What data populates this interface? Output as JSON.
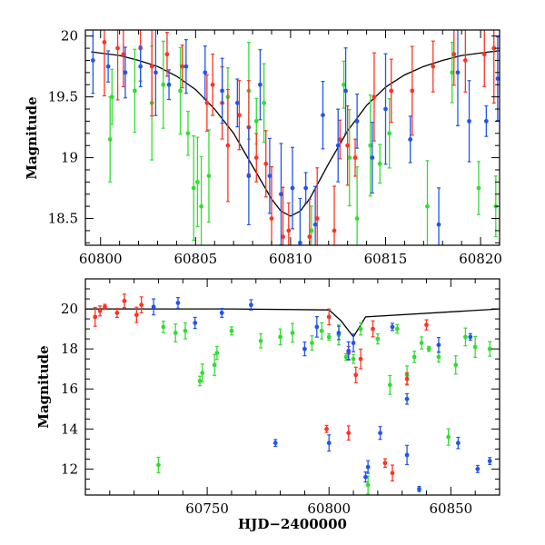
{
  "chart_data": [
    {
      "type": "scatter",
      "title": "",
      "xlabel": "",
      "ylabel": "Magnitude",
      "xlim": [
        60799.2,
        60821.0
      ],
      "ylim": [
        20.05,
        18.28
      ],
      "y_inverted": true,
      "x_ticks": [
        "60800",
        "60805",
        "60810",
        "60815",
        "60820"
      ],
      "x_tick_values": [
        60800,
        60805,
        60810,
        60815,
        60820
      ],
      "y_ticks": [
        "18.5",
        "19",
        "19.5",
        "20"
      ],
      "y_tick_values": [
        18.5,
        19.0,
        19.5,
        20.0
      ],
      "model_curve": {
        "color": "#000000",
        "x": [
          60799.5,
          60801,
          60802,
          60803,
          60804,
          60805,
          60806,
          60807,
          60808,
          60809,
          60809.5,
          60810,
          60810.5,
          60811,
          60812,
          60813,
          60814,
          60815,
          60816,
          60817,
          60818,
          60819,
          60820,
          60821
        ],
        "y": [
          19.87,
          19.84,
          19.8,
          19.75,
          19.67,
          19.56,
          19.4,
          19.2,
          18.93,
          18.66,
          18.56,
          18.52,
          18.56,
          18.66,
          18.95,
          19.22,
          19.43,
          19.58,
          19.68,
          19.75,
          19.8,
          19.84,
          19.86,
          19.88
        ]
      },
      "series": [
        {
          "name": "",
          "color": "#33dd33",
          "points": [
            [
              60800.5,
              19.15
            ],
            [
              60800.6,
              19.5
            ],
            [
              60801.8,
              19.55
            ],
            [
              60802.7,
              19.45
            ],
            [
              60803.3,
              19.6
            ],
            [
              60804.2,
              19.55
            ],
            [
              60804.6,
              19.2
            ],
            [
              60804.9,
              18.75
            ],
            [
              60805.1,
              18.8
            ],
            [
              60805.3,
              18.6
            ],
            [
              60805.7,
              18.85
            ],
            [
              60806.7,
              19.5
            ],
            [
              60807.8,
              19.55
            ],
            [
              60808.2,
              19.3
            ],
            [
              60808.6,
              19.45
            ],
            [
              60811.1,
              18.4
            ],
            [
              60812.8,
              19.6
            ],
            [
              60813.1,
              19.0
            ],
            [
              60813.5,
              18.5
            ],
            [
              60814.2,
              19.1
            ],
            [
              60814.7,
              18.95
            ],
            [
              60815.2,
              19.2
            ],
            [
              60817.2,
              18.6
            ],
            [
              60818.5,
              19.7
            ],
            [
              60819.9,
              18.75
            ],
            [
              60820.8,
              18.6
            ]
          ]
        },
        {
          "name": "",
          "color": "#ff3322",
          "points": [
            [
              60800.2,
              19.95
            ],
            [
              60800.9,
              19.9
            ],
            [
              60801.2,
              19.85
            ],
            [
              60802.1,
              19.9
            ],
            [
              60802.7,
              19.75
            ],
            [
              60803.5,
              19.85
            ],
            [
              60804.3,
              19.75
            ],
            [
              60805.6,
              19.45
            ],
            [
              60805.9,
              19.6
            ],
            [
              60806.4,
              19.45
            ],
            [
              60806.7,
              19.1
            ],
            [
              60807.3,
              19.35
            ],
            [
              60807.8,
              19.25
            ],
            [
              60808.2,
              19.0
            ],
            [
              60808.7,
              18.95
            ],
            [
              60809.0,
              18.5
            ],
            [
              60809.6,
              18.35
            ],
            [
              60809.9,
              18.4
            ],
            [
              60811.0,
              18.35
            ],
            [
              60811.4,
              18.5
            ],
            [
              60812.3,
              18.4
            ],
            [
              60812.6,
              19.15
            ],
            [
              60813.0,
              19.1
            ],
            [
              60813.4,
              19.0
            ],
            [
              60814.4,
              19.5
            ],
            [
              60815.3,
              19.55
            ],
            [
              60816.4,
              19.55
            ],
            [
              60817.5,
              19.75
            ],
            [
              60818.6,
              19.85
            ],
            [
              60819.2,
              19.8
            ],
            [
              60820.2,
              19.85
            ],
            [
              60820.7,
              19.9
            ]
          ]
        },
        {
          "name": "",
          "color": "#2255ee",
          "points": [
            [
              60799.6,
              19.8
            ],
            [
              60800.4,
              19.75
            ],
            [
              60801.3,
              19.7
            ],
            [
              60802.1,
              19.75
            ],
            [
              60802.9,
              19.7
            ],
            [
              60803.6,
              19.6
            ],
            [
              60804.5,
              19.75
            ],
            [
              60805.5,
              19.7
            ],
            [
              60806.4,
              19.55
            ],
            [
              60807.2,
              19.45
            ],
            [
              60807.8,
              18.85
            ],
            [
              60808.4,
              19.6
            ],
            [
              60808.9,
              18.85
            ],
            [
              60809.5,
              18.7
            ],
            [
              60810.1,
              18.75
            ],
            [
              60810.5,
              18.3
            ],
            [
              60810.8,
              18.75
            ],
            [
              60811.3,
              18.45
            ],
            [
              60811.7,
              19.35
            ],
            [
              60812.5,
              19.1
            ],
            [
              60812.9,
              19.55
            ],
            [
              60813.5,
              19.3
            ],
            [
              60814.3,
              19.0
            ],
            [
              60815.0,
              19.4
            ],
            [
              60816.3,
              19.15
            ],
            [
              60817.8,
              18.45
            ],
            [
              60818.8,
              19.7
            ],
            [
              60819.4,
              19.3
            ],
            [
              60820.3,
              19.3
            ],
            [
              60820.9,
              19.65
            ]
          ]
        }
      ]
    },
    {
      "type": "scatter",
      "title": "",
      "xlabel": "HJD−2400000",
      "ylabel": "Magnitude",
      "xlim": [
        60700,
        60870
      ],
      "ylim": [
        21.5,
        10.7
      ],
      "y_inverted": true,
      "x_ticks": [
        "60750",
        "60800",
        "60850"
      ],
      "x_tick_values": [
        60750,
        60800,
        60850
      ],
      "y_ticks": [
        "12",
        "14",
        "16",
        "18",
        "20"
      ],
      "y_tick_values": [
        12,
        14,
        16,
        18,
        20
      ],
      "baseline": {
        "color": "#000000",
        "x": [
          60700,
          60727,
          60760,
          60800,
          60805,
          60810,
          60815,
          60870
        ],
        "y": [
          20.0,
          20.0,
          20.0,
          19.95,
          19.4,
          18.6,
          19.6,
          20.0
        ]
      },
      "series": [
        {
          "name": "",
          "color": "#33dd33",
          "points": [
            [
              60730,
              12.2
            ],
            [
              60732,
              19.1
            ],
            [
              60737,
              18.8
            ],
            [
              60741,
              18.9
            ],
            [
              60747,
              16.4
            ],
            [
              60748,
              16.8
            ],
            [
              60753,
              17.2
            ],
            [
              60754,
              17.8
            ],
            [
              60760,
              18.9
            ],
            [
              60772,
              18.4
            ],
            [
              60780,
              18.6
            ],
            [
              60785,
              18.8
            ],
            [
              60793,
              18.3
            ],
            [
              60797,
              18.9
            ],
            [
              60800,
              18.6
            ],
            [
              60804,
              18.7
            ],
            [
              60807,
              17.6
            ],
            [
              60810,
              17.5
            ],
            [
              60813,
              19.0
            ],
            [
              60816,
              11.2
            ],
            [
              60820,
              18.5
            ],
            [
              60825,
              16.2
            ],
            [
              60828,
              19.0
            ],
            [
              60832,
              16.7
            ],
            [
              60835,
              17.6
            ],
            [
              60838,
              18.3
            ],
            [
              60841,
              18.0
            ],
            [
              60845,
              17.6
            ],
            [
              60849,
              13.6
            ],
            [
              60852,
              17.2
            ],
            [
              60856,
              18.6
            ],
            [
              60860,
              18.1
            ],
            [
              60866,
              18.0
            ]
          ]
        },
        {
          "name": "",
          "color": "#ff3322",
          "points": [
            [
              60704,
              19.6
            ],
            [
              60706,
              19.9
            ],
            [
              60708,
              20.1
            ],
            [
              60713,
              19.8
            ],
            [
              60716,
              20.4
            ],
            [
              60721,
              19.7
            ],
            [
              60723,
              20.2
            ],
            [
              60800,
              19.6
            ],
            [
              60808,
              17.8
            ],
            [
              60811,
              16.7
            ],
            [
              60813,
              17.5
            ],
            [
              60818,
              19.0
            ],
            [
              60799,
              14.0
            ],
            [
              60808,
              13.8
            ],
            [
              60823,
              12.3
            ],
            [
              60826,
              11.8
            ],
            [
              60832,
              16.5
            ],
            [
              60840,
              19.2
            ]
          ]
        },
        {
          "name": "",
          "color": "#2255ee",
          "points": [
            [
              60728,
              20.1
            ],
            [
              60738,
              20.3
            ],
            [
              60745,
              19.3
            ],
            [
              60756,
              19.8
            ],
            [
              60768,
              20.2
            ],
            [
              60778,
              13.3
            ],
            [
              60790,
              18.0
            ],
            [
              60795,
              19.1
            ],
            [
              60800,
              13.3
            ],
            [
              60804,
              18.8
            ],
            [
              60808,
              17.9
            ],
            [
              60810,
              18.3
            ],
            [
              60815,
              11.6
            ],
            [
              60816,
              12.1
            ],
            [
              60821,
              13.8
            ],
            [
              60826,
              19.1
            ],
            [
              60832,
              12.7
            ],
            [
              60832,
              15.5
            ],
            [
              60837,
              11.0
            ],
            [
              60845,
              18.2
            ],
            [
              60853,
              13.3
            ],
            [
              60858,
              18.6
            ],
            [
              60861,
              12.0
            ],
            [
              60866,
              12.4
            ]
          ]
        }
      ]
    }
  ]
}
